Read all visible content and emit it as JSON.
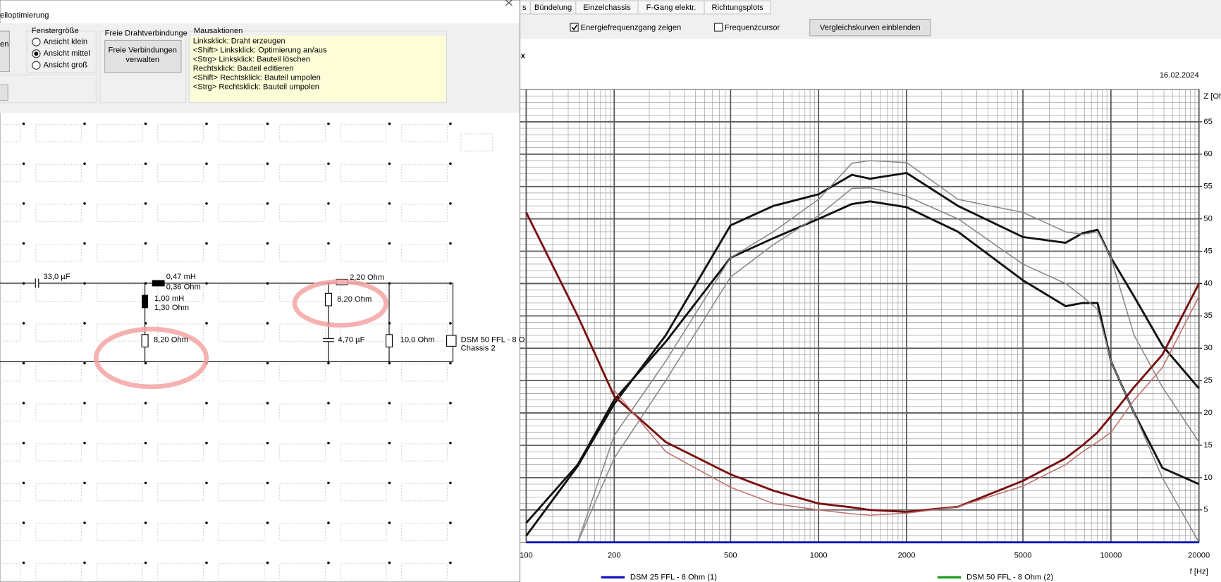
{
  "dialog": {
    "title": "eiloptimierung",
    "button_fragment": "en",
    "window_size": {
      "label": "Fenstergröße",
      "options": [
        "Ansicht klein",
        "Ansicht mittel",
        "Ansicht groß"
      ],
      "selected": 1
    },
    "wires": {
      "label": "Freie Drahtverbindunge",
      "button_lines": [
        "Freie Verbindungen",
        "verwalten"
      ]
    },
    "mouse": {
      "label": "Mausaktionen",
      "lines": [
        "Linksklick: Draht erzeugen",
        "<Shift> Linksklick: Optimierung an/aus",
        "<Strg> Linksklick: Bauteil löschen",
        "Rechtsklick: Bauteil editieren",
        "<Shift> Rechtsklick: Bauteil umpolen",
        "<Strg> Rechtsklick: Bauteil umpolen"
      ]
    },
    "schematic": {
      "labels": [
        "33,0 µF",
        "0,47 mH",
        "0,36 Ohm",
        "1,00 mH",
        "1,30 Ohm",
        "8,20 Ohm",
        "2,20 Ohm",
        "8,20 Ohm",
        "4,70 µF",
        "10,0 Ohm",
        "DSM 50 FFL - 8 O",
        "Chassis 2"
      ],
      "highlighted": [
        5,
        7
      ]
    }
  },
  "tabs": [
    "s",
    "Bündelung",
    "Einzelchassis",
    "F-Gang elektr.",
    "Richtungsplots"
  ],
  "controls": {
    "checkboxes": [
      {
        "label": "Energiefrequenzgang zeigen",
        "checked": true
      },
      {
        "label": "Frequenzcursor",
        "checked": false
      }
    ],
    "button": "Vergleichskurven einblenden"
  },
  "chart_data": {
    "type": "line",
    "title": "ox",
    "date": "16.02.2024",
    "y_label": "Z [Ohm]",
    "x_label": "f [Hz]",
    "log_x": true,
    "grid": true,
    "x": [
      100,
      150,
      200,
      300,
      500,
      700,
      1000,
      1300,
      1500,
      2000,
      3000,
      5000,
      7000,
      8000,
      9000,
      10000,
      12000,
      15000,
      20000
    ],
    "xlim": [
      100,
      20000
    ],
    "xticks": [
      100,
      200,
      500,
      1000,
      2000,
      5000,
      10000,
      20000
    ],
    "ylim": [
      0,
      70
    ],
    "yticks": [
      5,
      10,
      15,
      20,
      25,
      30,
      35,
      40,
      45,
      50,
      55,
      60,
      65
    ],
    "series": [
      {
        "color": "#111111",
        "values": [
          1,
          11.8,
          21.4,
          32,
          49,
          52,
          53.8,
          56.8,
          56.2,
          57.1,
          52,
          47.2,
          46.3,
          47.8,
          48.3,
          44,
          38,
          30.4,
          23.8
        ]
      },
      {
        "color": "#111111",
        "values": [
          3,
          12,
          22,
          31,
          44,
          47,
          50,
          52.3,
          52.7,
          51.8,
          48,
          40.5,
          36.5,
          37,
          37,
          28,
          20,
          11.5,
          9
        ]
      },
      {
        "color": "#888888",
        "values": [
          null,
          0,
          16.5,
          28,
          44,
          48,
          53,
          58.6,
          59,
          58.7,
          53,
          51,
          48,
          47.6,
          48,
          44,
          32,
          24,
          15.5
        ]
      },
      {
        "color": "#888888",
        "values": [
          null,
          0,
          13,
          25,
          41,
          46,
          50.5,
          54.7,
          54.8,
          53.5,
          50,
          43,
          40,
          38,
          36,
          28,
          20,
          10,
          0
        ]
      },
      {
        "color": "#7a1010",
        "values": [
          51,
          35,
          22.6,
          15.5,
          10.5,
          8,
          6,
          5.4,
          5,
          4.7,
          5.5,
          9.5,
          13,
          15,
          17,
          19.5,
          24,
          29,
          40
        ]
      },
      {
        "color": "#c07070",
        "values": [
          null,
          null,
          23.5,
          14,
          8.5,
          6,
          5,
          4.4,
          4.2,
          4.5,
          5.5,
          8.7,
          12,
          14,
          15.5,
          17,
          22,
          27,
          38
        ]
      },
      {
        "name": "DSM 25 FFL - 8 Ohm (1)",
        "color": "#1010c0",
        "values": [
          0,
          0,
          0,
          0,
          0,
          0,
          0,
          0,
          0,
          0,
          0,
          0,
          0,
          0,
          0,
          0,
          0,
          0,
          0
        ]
      },
      {
        "name": "DSM 50 FFL - 8 Ohm (2)",
        "color": "#1a9a1a",
        "values": [
          null,
          null,
          null,
          null,
          null,
          null,
          null,
          null,
          null,
          null,
          null,
          null,
          null,
          null,
          null,
          null,
          null,
          null,
          null
        ]
      }
    ]
  }
}
